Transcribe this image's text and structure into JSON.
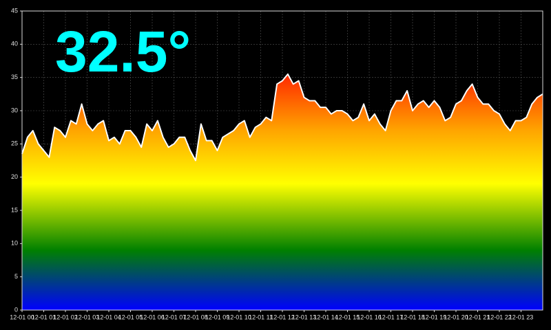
{
  "chart_data": {
    "type": "area-line",
    "annotation": "32.5°",
    "annotation_color": "#00ffff",
    "line_color": "#ffffff",
    "grid": true,
    "xlim": [
      0,
      24
    ],
    "ylim": [
      0,
      45
    ],
    "yticks": [
      0,
      5,
      10,
      15,
      20,
      25,
      30,
      35,
      40,
      45
    ],
    "xticks": [
      {
        "value": 0,
        "label": "12-01 00"
      },
      {
        "value": 1,
        "label": "12-01 01"
      },
      {
        "value": 2,
        "label": "12-01 02"
      },
      {
        "value": 3,
        "label": "12-01 03"
      },
      {
        "value": 4,
        "label": "12-01 04"
      },
      {
        "value": 5,
        "label": "12-01 05"
      },
      {
        "value": 6,
        "label": "12-01 06"
      },
      {
        "value": 7,
        "label": "12-01 07"
      },
      {
        "value": 8,
        "label": "12-01 08"
      },
      {
        "value": 9,
        "label": "12-01 09"
      },
      {
        "value": 10,
        "label": "12-01 10"
      },
      {
        "value": 11,
        "label": "12-01 11"
      },
      {
        "value": 12,
        "label": "12-01 12"
      },
      {
        "value": 13,
        "label": "12-01 13"
      },
      {
        "value": 14,
        "label": "12-01 14"
      },
      {
        "value": 15,
        "label": "12-01 15"
      },
      {
        "value": 16,
        "label": "12-01 16"
      },
      {
        "value": 17,
        "label": "12-01 17"
      },
      {
        "value": 18,
        "label": "12-01 18"
      },
      {
        "value": 19,
        "label": "12-01 19"
      },
      {
        "value": 20,
        "label": "12-01 20"
      },
      {
        "value": 21,
        "label": "12-01 21"
      },
      {
        "value": 22,
        "label": "12-01 22"
      },
      {
        "value": 23,
        "label": "12-01 23"
      }
    ],
    "gradient": [
      {
        "value": 0,
        "color": "#0000ff"
      },
      {
        "value": 9,
        "color": "#008000"
      },
      {
        "value": 19,
        "color": "#ffff00"
      },
      {
        "value": 27,
        "color": "#ffa500"
      },
      {
        "value": 36,
        "color": "#ff2000"
      }
    ],
    "x": [
      0,
      0.25,
      0.5,
      0.75,
      1,
      1.25,
      1.5,
      1.75,
      2,
      2.25,
      2.5,
      2.75,
      3,
      3.25,
      3.5,
      3.75,
      4,
      4.25,
      4.5,
      4.75,
      5,
      5.25,
      5.5,
      5.75,
      6,
      6.25,
      6.5,
      6.75,
      7,
      7.25,
      7.5,
      7.75,
      8,
      8.25,
      8.5,
      8.75,
      9,
      9.25,
      9.5,
      9.75,
      10,
      10.25,
      10.5,
      10.75,
      11,
      11.25,
      11.5,
      11.75,
      12,
      12.25,
      12.5,
      12.75,
      13,
      13.25,
      13.5,
      13.75,
      14,
      14.25,
      14.5,
      14.75,
      15,
      15.25,
      15.5,
      15.75,
      16,
      16.25,
      16.5,
      16.75,
      17,
      17.25,
      17.5,
      17.75,
      18,
      18.25,
      18.5,
      18.75,
      19,
      19.25,
      19.5,
      19.75,
      20,
      20.25,
      20.5,
      20.75,
      21,
      21.25,
      21.5,
      21.75,
      22,
      22.25,
      22.5,
      22.75,
      23,
      23.25,
      23.5,
      23.75,
      24
    ],
    "values": [
      23.5,
      26,
      27,
      25,
      24,
      23,
      27.5,
      27,
      26,
      28.5,
      28,
      31,
      28,
      27,
      28,
      28.5,
      25.5,
      26,
      25,
      27,
      27,
      26,
      24.5,
      28,
      27,
      28.5,
      26,
      24.5,
      25,
      26,
      26,
      24,
      22.5,
      28,
      25.5,
      25.5,
      24,
      26,
      26.5,
      27,
      28,
      28.5,
      26,
      27.5,
      28,
      29,
      28.5,
      34,
      34.5,
      35.5,
      34,
      34.5,
      32,
      31.5,
      31.5,
      30.5,
      30.5,
      29.5,
      30,
      30,
      29.5,
      28.5,
      29,
      31,
      28.5,
      29.5,
      28,
      27,
      30,
      31.5,
      31.5,
      33,
      30,
      31,
      31.5,
      30.5,
      31.5,
      30.5,
      28.5,
      29,
      31,
      31.5,
      33,
      34,
      32,
      31,
      31,
      30,
      29.5,
      28,
      27,
      28.5,
      28.5,
      29,
      31,
      32,
      32.5
    ]
  }
}
